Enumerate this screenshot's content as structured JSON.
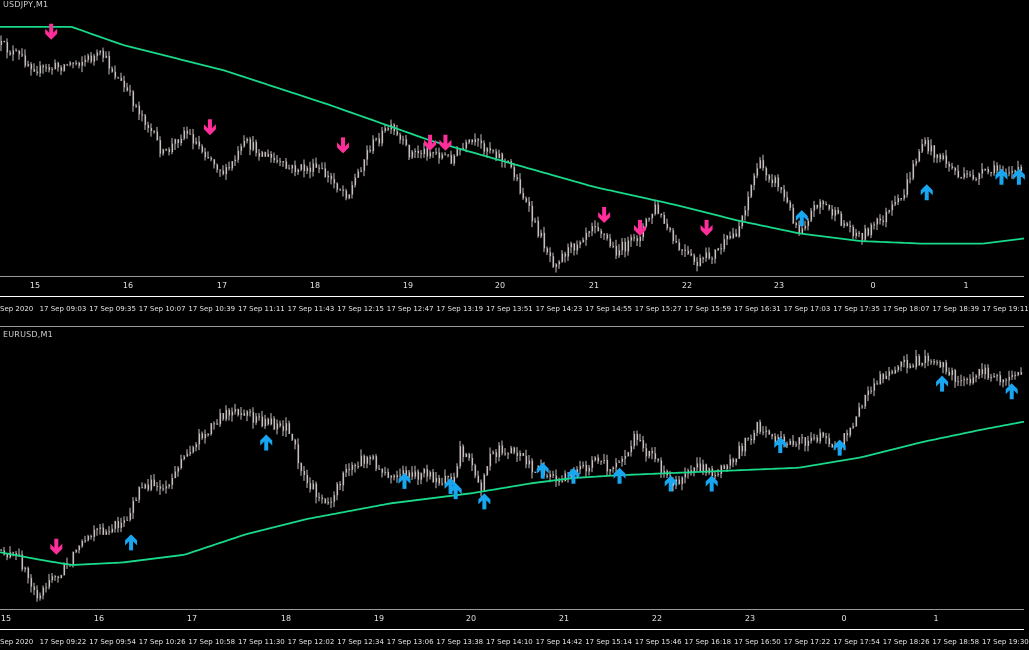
{
  "colors": {
    "background": "#000000",
    "candle": "#c9bfbf",
    "ma_line": "#19d98a",
    "arrow_down": "#ff2e9a",
    "arrow_up": "#19a6f0"
  },
  "charts": [
    {
      "symbol_label": "USDJPY,M1",
      "hour_labels": [
        "15",
        "16",
        "17",
        "18",
        "19",
        "20",
        "21",
        "22",
        "23",
        "0",
        "1"
      ],
      "time_labels": [
        "Sep 2020",
        "17 Sep 09:03",
        "17 Sep 09:35",
        "17 Sep 10:07",
        "17 Sep 10:39",
        "17 Sep 11:11",
        "17 Sep 11:43",
        "17 Sep 12:15",
        "17 Sep 12:47",
        "17 Sep 13:19",
        "17 Sep 13:51",
        "17 Sep 14:23",
        "17 Sep 14:55",
        "17 Sep 15:27",
        "17 Sep 15:59",
        "17 Sep 16:31",
        "17 Sep 17:03",
        "17 Sep 17:35",
        "17 Sep 18:07",
        "17 Sep 18:39",
        "17 Sep 19:11"
      ]
    },
    {
      "symbol_label": "EURUSD,M1",
      "hour_labels": [
        "15",
        "16",
        "17",
        "18",
        "19",
        "20",
        "21",
        "22",
        "23",
        "0",
        "1"
      ],
      "time_labels": [
        "Sep 2020",
        "17 Sep 09:22",
        "17 Sep 09:54",
        "17 Sep 10:26",
        "17 Sep 10:58",
        "17 Sep 11:30",
        "17 Sep 12:02",
        "17 Sep 12:34",
        "17 Sep 13:06",
        "17 Sep 13:38",
        "17 Sep 14:10",
        "17 Sep 14:42",
        "17 Sep 15:14",
        "17 Sep 15:46",
        "17 Sep 16:18",
        "17 Sep 16:50",
        "17 Sep 17:22",
        "17 Sep 17:54",
        "17 Sep 18:26",
        "17 Sep 18:58",
        "17 Sep 19:30"
      ]
    }
  ],
  "chart_data": [
    {
      "type": "line",
      "title": "USDJPY,M1",
      "x_ticks": [
        "15",
        "16",
        "17",
        "18",
        "19",
        "20",
        "21",
        "22",
        "23",
        "0",
        "1"
      ],
      "series": [],
      "price_path": [
        [
          0,
          0.12
        ],
        [
          4,
          0.22
        ],
        [
          8,
          0.18
        ],
        [
          10,
          0.16
        ],
        [
          14,
          0.4
        ],
        [
          16,
          0.55
        ],
        [
          18,
          0.45
        ],
        [
          22,
          0.62
        ],
        [
          24,
          0.5
        ],
        [
          28,
          0.6
        ],
        [
          31,
          0.6
        ],
        [
          34,
          0.7
        ],
        [
          36,
          0.52
        ],
        [
          38,
          0.44
        ],
        [
          40,
          0.54
        ],
        [
          42,
          0.53
        ],
        [
          44,
          0.56
        ],
        [
          46,
          0.5
        ],
        [
          48,
          0.52
        ],
        [
          50,
          0.6
        ],
        [
          52,
          0.8
        ],
        [
          54,
          0.96
        ],
        [
          56,
          0.9
        ],
        [
          58,
          0.8
        ],
        [
          60,
          0.92
        ],
        [
          62,
          0.88
        ],
        [
          64,
          0.75
        ],
        [
          66,
          0.9
        ],
        [
          68,
          0.97
        ],
        [
          70,
          0.92
        ],
        [
          72,
          0.84
        ],
        [
          74,
          0.58
        ],
        [
          76,
          0.66
        ],
        [
          78,
          0.84
        ],
        [
          80,
          0.72
        ],
        [
          82,
          0.8
        ],
        [
          84,
          0.86
        ],
        [
          86,
          0.8
        ],
        [
          88,
          0.72
        ],
        [
          90,
          0.5
        ],
        [
          92,
          0.56
        ],
        [
          94,
          0.64
        ],
        [
          96,
          0.62
        ],
        [
          98,
          0.6
        ],
        [
          100,
          0.62
        ]
      ],
      "ma_path": [
        [
          0,
          0.05
        ],
        [
          7,
          0.05
        ],
        [
          12,
          0.12
        ],
        [
          22,
          0.22
        ],
        [
          32,
          0.35
        ],
        [
          42,
          0.49
        ],
        [
          50,
          0.58
        ],
        [
          58,
          0.67
        ],
        [
          66,
          0.74
        ],
        [
          72,
          0.8
        ],
        [
          78,
          0.85
        ],
        [
          84,
          0.88
        ],
        [
          90,
          0.89
        ],
        [
          96,
          0.89
        ],
        [
          100,
          0.87
        ]
      ],
      "signals": [
        {
          "dir": "down",
          "t": 5,
          "v": 0.1
        },
        {
          "dir": "down",
          "t": 20.5,
          "v": 0.47
        },
        {
          "dir": "down",
          "t": 33.5,
          "v": 0.54
        },
        {
          "dir": "down",
          "t": 42,
          "v": 0.53
        },
        {
          "dir": "down",
          "t": 43.5,
          "v": 0.53
        },
        {
          "dir": "down",
          "t": 59,
          "v": 0.81
        },
        {
          "dir": "down",
          "t": 62.5,
          "v": 0.86
        },
        {
          "dir": "down",
          "t": 69,
          "v": 0.86
        },
        {
          "dir": "up",
          "t": 78.3,
          "v": 0.76
        },
        {
          "dir": "up",
          "t": 90.5,
          "v": 0.66
        },
        {
          "dir": "up",
          "t": 97.8,
          "v": 0.6
        },
        {
          "dir": "up",
          "t": 99.5,
          "v": 0.6
        }
      ]
    },
    {
      "type": "line",
      "title": "EURUSD,M1",
      "x_ticks": [
        "15",
        "16",
        "17",
        "18",
        "19",
        "20",
        "21",
        "22",
        "23",
        "0",
        "1"
      ],
      "series": [],
      "price_path": [
        [
          0,
          0.78
        ],
        [
          2,
          0.82
        ],
        [
          3.5,
          0.96
        ],
        [
          6,
          0.86
        ],
        [
          9,
          0.72
        ],
        [
          12,
          0.68
        ],
        [
          14,
          0.52
        ],
        [
          16,
          0.54
        ],
        [
          19,
          0.36
        ],
        [
          22,
          0.24
        ],
        [
          24,
          0.26
        ],
        [
          28,
          0.3
        ],
        [
          30,
          0.52
        ],
        [
          32,
          0.6
        ],
        [
          34,
          0.46
        ],
        [
          36,
          0.42
        ],
        [
          38,
          0.5
        ],
        [
          40,
          0.48
        ],
        [
          42,
          0.49
        ],
        [
          44,
          0.52
        ],
        [
          45,
          0.38
        ],
        [
          47,
          0.54
        ],
        [
          48,
          0.4
        ],
        [
          50,
          0.38
        ],
        [
          52,
          0.46
        ],
        [
          54,
          0.5
        ],
        [
          56,
          0.48
        ],
        [
          58,
          0.44
        ],
        [
          60,
          0.46
        ],
        [
          62,
          0.34
        ],
        [
          64,
          0.44
        ],
        [
          66,
          0.52
        ],
        [
          68,
          0.46
        ],
        [
          70,
          0.48
        ],
        [
          72,
          0.4
        ],
        [
          74,
          0.3
        ],
        [
          76,
          0.36
        ],
        [
          78,
          0.36
        ],
        [
          80,
          0.34
        ],
        [
          82,
          0.38
        ],
        [
          84,
          0.22
        ],
        [
          86,
          0.1
        ],
        [
          88,
          0.06
        ],
        [
          90,
          0.04
        ],
        [
          92,
          0.06
        ],
        [
          94,
          0.14
        ],
        [
          96,
          0.08
        ],
        [
          98,
          0.12
        ],
        [
          100,
          0.1
        ]
      ],
      "ma_path": [
        [
          0,
          0.79
        ],
        [
          4,
          0.82
        ],
        [
          7,
          0.84
        ],
        [
          12,
          0.83
        ],
        [
          18,
          0.8
        ],
        [
          24,
          0.72
        ],
        [
          30,
          0.66
        ],
        [
          38,
          0.6
        ],
        [
          46,
          0.56
        ],
        [
          52,
          0.52
        ],
        [
          56,
          0.5
        ],
        [
          60,
          0.49
        ],
        [
          66,
          0.48
        ],
        [
          72,
          0.47
        ],
        [
          78,
          0.46
        ],
        [
          84,
          0.42
        ],
        [
          90,
          0.36
        ],
        [
          96,
          0.31
        ],
        [
          100,
          0.28
        ]
      ],
      "signals": [
        {
          "dir": "down",
          "t": 5.5,
          "v": 0.8
        },
        {
          "dir": "up",
          "t": 12.8,
          "v": 0.72
        },
        {
          "dir": "up",
          "t": 26,
          "v": 0.33
        },
        {
          "dir": "up",
          "t": 39.5,
          "v": 0.48
        },
        {
          "dir": "up",
          "t": 44,
          "v": 0.5
        },
        {
          "dir": "up",
          "t": 44.5,
          "v": 0.52
        },
        {
          "dir": "up",
          "t": 47.3,
          "v": 0.56
        },
        {
          "dir": "up",
          "t": 53,
          "v": 0.44
        },
        {
          "dir": "up",
          "t": 56,
          "v": 0.46
        },
        {
          "dir": "up",
          "t": 60.5,
          "v": 0.46
        },
        {
          "dir": "up",
          "t": 65.5,
          "v": 0.49
        },
        {
          "dir": "up",
          "t": 69.5,
          "v": 0.49
        },
        {
          "dir": "up",
          "t": 76.2,
          "v": 0.34
        },
        {
          "dir": "up",
          "t": 82,
          "v": 0.35
        },
        {
          "dir": "up",
          "t": 92,
          "v": 0.1
        },
        {
          "dir": "up",
          "t": 98.8,
          "v": 0.13
        }
      ]
    }
  ]
}
